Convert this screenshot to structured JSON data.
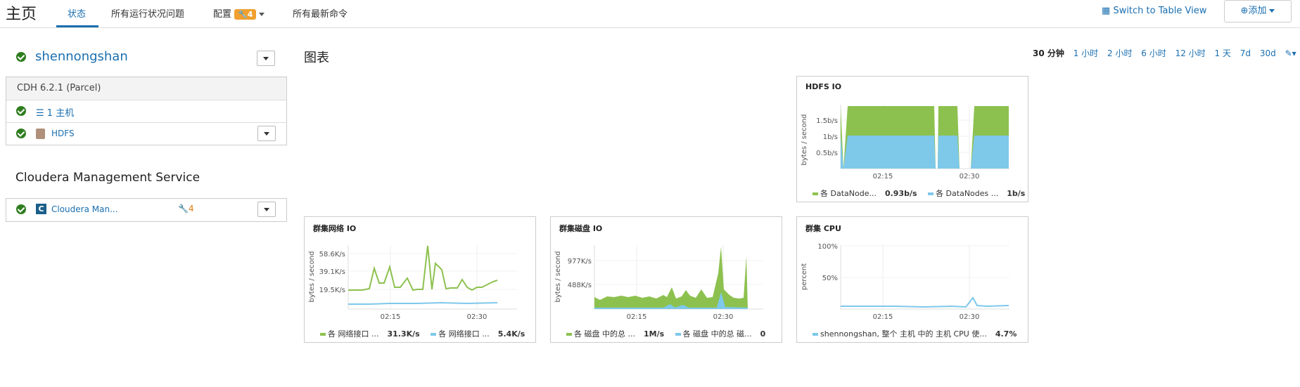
{
  "header": {
    "title": "主页",
    "tabs": [
      {
        "label": "状态"
      },
      {
        "label": "所有运行状况问题"
      },
      {
        "label": "配置",
        "badge": "4"
      },
      {
        "label": "所有最新命令"
      }
    ],
    "switch_view_label": "Switch to Table View",
    "add_label": "添加"
  },
  "cluster": {
    "name": "shennongshan",
    "version": "CDH 6.2.1 (Parcel)",
    "rows": [
      {
        "label": "1 主机",
        "icon": "list-icon"
      },
      {
        "label": "HDFS",
        "icon": "hdfs-icon"
      }
    ]
  },
  "management": {
    "title": "Cloudera Management Service",
    "service_label": "Cloudera Man...",
    "config_count": "4"
  },
  "charts_header": {
    "title": "图表",
    "ranges": [
      "30 分钟",
      "1 小时",
      "2 小时",
      "6 小时",
      "12 小时",
      "1 天",
      "7d",
      "30d"
    ],
    "selected_range": "30 分钟"
  },
  "colors": {
    "green": "#8dc14f",
    "blue": "#7ec8ea",
    "accent": "#1a6fb0"
  },
  "charts": [
    {
      "title": "HDFS IO",
      "ylabel": "bytes / second",
      "yticks": [
        "1.5b/s",
        "1b/s",
        "0.5b/s"
      ],
      "xticks": [
        "02:15",
        "02:30"
      ],
      "legend": [
        {
          "label": "各 DataNode...",
          "value": "0.93b/s",
          "color": "#8dc14f"
        },
        {
          "label": "各 DataNodes ...",
          "value": "1b/s",
          "color": "#7ec8ea"
        }
      ]
    },
    {
      "title": "群集网络 IO",
      "ylabel": "bytes / second",
      "yticks": [
        "58.6K/s",
        "39.1K/s",
        "19.5K/s"
      ],
      "xticks": [
        "02:15",
        "02:30"
      ],
      "legend": [
        {
          "label": "各 网络接口 ...",
          "value": "31.3K/s",
          "color": "#8dc14f"
        },
        {
          "label": "各 网络接口 ...",
          "value": "5.4K/s",
          "color": "#7ec8ea"
        }
      ]
    },
    {
      "title": "群集磁盘 IO",
      "ylabel": "bytes / second",
      "yticks": [
        "977K/s",
        "488K/s"
      ],
      "xticks": [
        "02:15",
        "02:30"
      ],
      "legend": [
        {
          "label": "各 磁盘 中的总 ...",
          "value": "1M/s",
          "color": "#8dc14f"
        },
        {
          "label": "各 磁盘 中的总 磁...",
          "value": "0",
          "color": "#7ec8ea"
        }
      ]
    },
    {
      "title": "群集 CPU",
      "ylabel": "percent",
      "yticks": [
        "100%",
        "50%"
      ],
      "xticks": [
        "02:15",
        "02:30"
      ],
      "legend": [
        {
          "label": "shennongshan, 整个 主机 中的 主机 CPU 使...",
          "value": "4.7%",
          "color": "#7ec8ea"
        }
      ]
    }
  ]
}
